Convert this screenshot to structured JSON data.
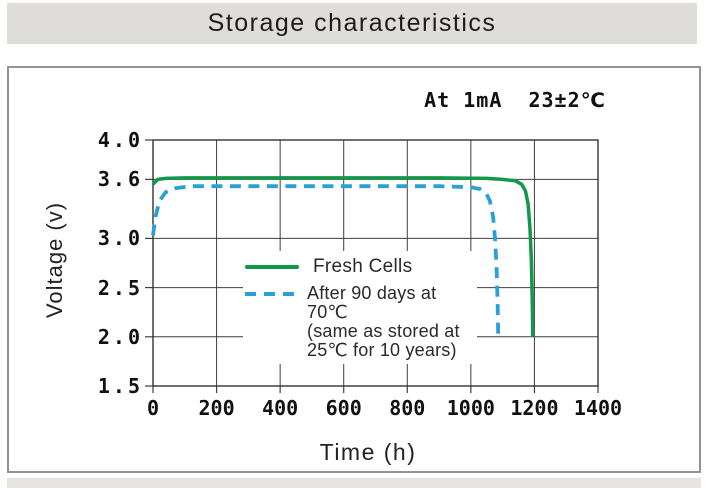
{
  "banner": {
    "bg": "#deddda"
  },
  "chart_data": {
    "type": "line",
    "title": "Storage characteristics",
    "annotation": "At 1mA  23±2℃",
    "xlabel": "Time (h)",
    "ylabel": "Voltage (v)",
    "xlim": [
      0,
      1400
    ],
    "ylim": [
      1.5,
      4.0
    ],
    "x_ticks": [
      0,
      200,
      400,
      600,
      800,
      1000,
      1200,
      1400
    ],
    "y_ticks": [
      4.0,
      3.6,
      3.0,
      2.5,
      2.0,
      1.5
    ],
    "grid": true,
    "grid_color": "#3f3f3f",
    "frame_color": "#333333",
    "legend_position": "inside-left-middle",
    "series": [
      {
        "name": "Fresh Cells",
        "color": "#12984a",
        "line_style": "solid",
        "line_width": 3.5,
        "points": [
          [
            0,
            3.55
          ],
          [
            15,
            3.6
          ],
          [
            40,
            3.61
          ],
          [
            100,
            3.615
          ],
          [
            300,
            3.615
          ],
          [
            600,
            3.615
          ],
          [
            900,
            3.615
          ],
          [
            1050,
            3.61
          ],
          [
            1100,
            3.6
          ],
          [
            1140,
            3.585
          ],
          [
            1160,
            3.55
          ],
          [
            1172,
            3.48
          ],
          [
            1180,
            3.35
          ],
          [
            1186,
            3.1
          ],
          [
            1190,
            2.8
          ],
          [
            1193,
            2.4
          ],
          [
            1195,
            2.0
          ]
        ]
      },
      {
        "name": "After 90 days at 70℃ (same as stored at 25℃ for 10 years)",
        "color": "#2b9fd7",
        "line_style": "dashed",
        "line_width": 3.8,
        "dash": [
          11,
          7.5
        ],
        "points": [
          [
            0,
            3.03
          ],
          [
            8,
            3.22
          ],
          [
            20,
            3.38
          ],
          [
            40,
            3.47
          ],
          [
            70,
            3.51
          ],
          [
            120,
            3.53
          ],
          [
            300,
            3.53
          ],
          [
            600,
            3.53
          ],
          [
            900,
            3.53
          ],
          [
            1000,
            3.52
          ],
          [
            1030,
            3.5
          ],
          [
            1048,
            3.46
          ],
          [
            1060,
            3.38
          ],
          [
            1070,
            3.22
          ],
          [
            1076,
            3.0
          ],
          [
            1081,
            2.7
          ],
          [
            1084,
            2.35
          ],
          [
            1086,
            2.0
          ]
        ]
      }
    ]
  },
  "legend": {
    "fresh_label": "Fresh Cells",
    "aged_line1": "After 90 days at 70℃",
    "aged_line2": "(same as stored at",
    "aged_line3": "25℃ for 10 years)"
  }
}
